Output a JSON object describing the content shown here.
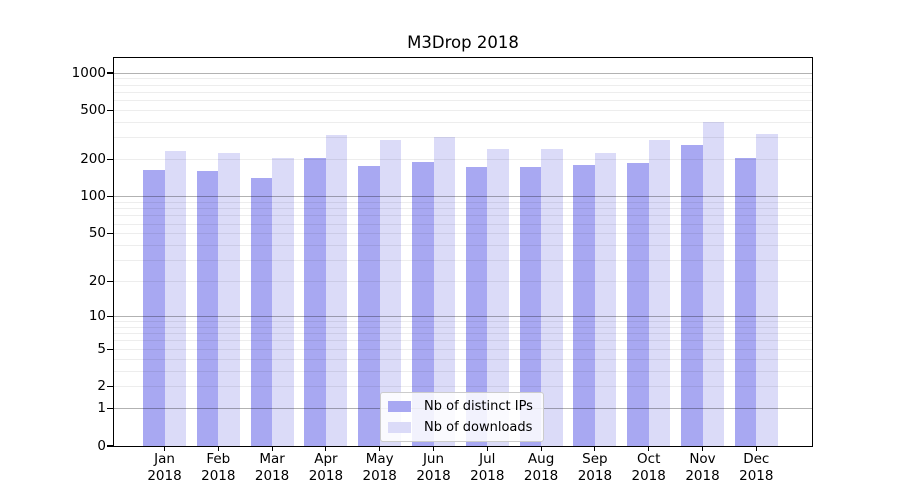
{
  "title": "M3Drop 2018",
  "chart_data": {
    "type": "bar",
    "categories": [
      "Jan",
      "Feb",
      "Mar",
      "Apr",
      "May",
      "Jun",
      "Jul",
      "Aug",
      "Sep",
      "Oct",
      "Nov",
      "Dec"
    ],
    "category_year": "2018",
    "series": [
      {
        "name": "Nb of distinct IPs",
        "color": "#a8a8f2",
        "values": [
          165,
          161,
          143,
          206,
          179,
          190,
          176,
          175,
          180,
          188,
          265,
          205
        ]
      },
      {
        "name": "Nb of downloads",
        "color": "#dbdbf8",
        "values": [
          236,
          228,
          206,
          317,
          290,
          304,
          245,
          244,
          228,
          288,
          406,
          321
        ]
      }
    ],
    "y_axis": {
      "scale": "log10(value+1)",
      "tick_values": [
        0,
        1,
        2,
        5,
        10,
        20,
        50,
        100,
        200,
        500,
        1000
      ],
      "range_min": 0,
      "range_max": 1320
    },
    "grid": {
      "on": true,
      "minor_multiples": [
        2,
        3,
        4,
        5,
        6,
        7,
        8,
        9
      ],
      "minor_decades": [
        1,
        10,
        100
      ],
      "major_values": [
        1,
        10,
        100,
        1000
      ]
    },
    "legend": {
      "position": "lower-center"
    },
    "colors": {
      "axis": "#000000",
      "grid_minor": "rgba(0,0,0,0.07)",
      "grid_major": "rgba(0,0,0,0.30)",
      "background": "#ffffff"
    }
  }
}
